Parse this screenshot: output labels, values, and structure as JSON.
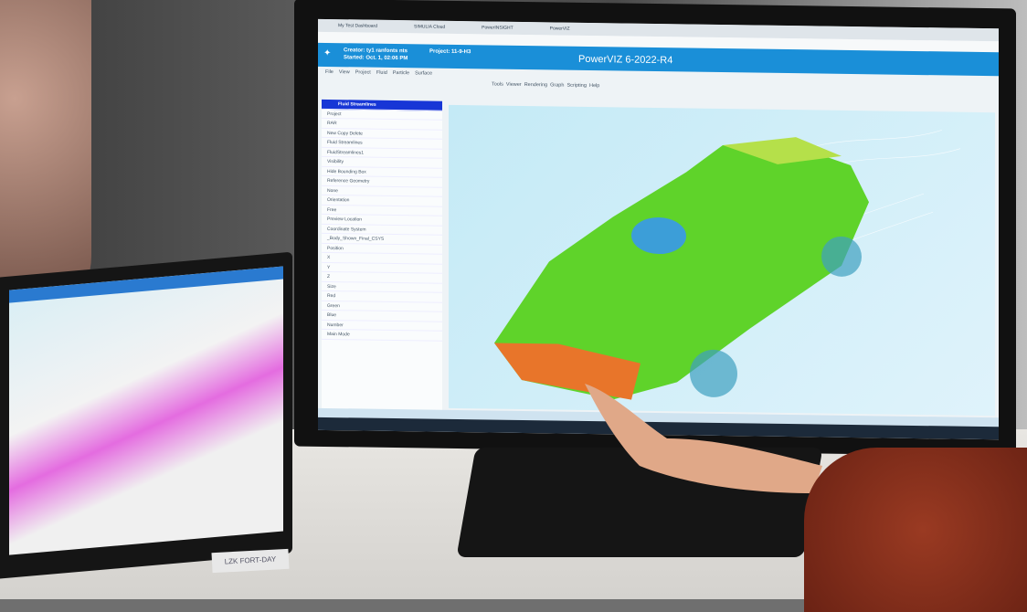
{
  "browser": {
    "tabs": [
      "My Test Dashboard",
      "SIMULIA Cloud",
      "PowerINSIGHT",
      "PowerVIZ"
    ]
  },
  "app": {
    "creator": "Creator: ty1 ranfonts nts",
    "started": "Started: Oct. 1, 02:06 PM",
    "project": "Project: 11-9-H3",
    "title": "PowerVIZ 6-2022-R4",
    "menu": [
      "File",
      "View",
      "Project",
      "Fluid",
      "Particle",
      "Surface"
    ],
    "ribbon": [
      "Tools",
      "Viewer",
      "Rendering",
      "Graph",
      "Scripting",
      "Help"
    ]
  },
  "panel": {
    "selected": "Fluid Streamlines",
    "rows": [
      "Project",
      "RAR",
      "New    Copy    Delete",
      "Fluid Streamlines",
      "FluidStreamlines1",
      "Visibility",
      "Hide Bounding Box",
      "Reference Geometry",
      "None",
      "Orientation",
      "Free",
      "Preview Location",
      "Coordinate System",
      "_Body_Shown_Final_CSYS",
      "Position",
      "X",
      "Y",
      "Z",
      "Size",
      "Red",
      "Green",
      "Blue",
      "Number",
      "Main Mode"
    ]
  },
  "laptop": {
    "sticker": "LZK FORT-DAY"
  },
  "colors": {
    "header": "#1a8fd8",
    "selection": "#1736d6",
    "car": "#5fd32a"
  }
}
